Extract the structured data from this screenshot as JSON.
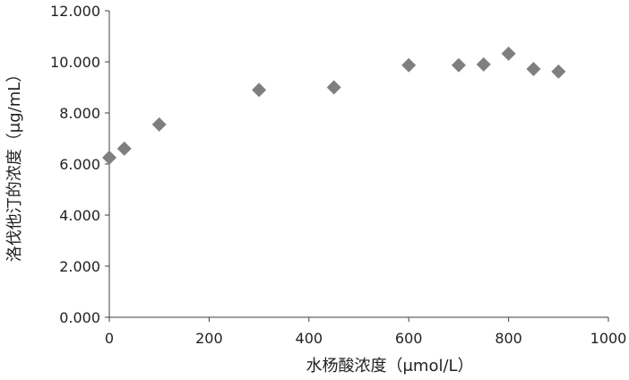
{
  "chart_data": {
    "type": "scatter",
    "title": "",
    "xlabel": "水杨酸浓度（μmol/L）",
    "ylabel": "洛伐他汀的浓度（μg/mL）",
    "xlim": [
      0,
      1000
    ],
    "ylim": [
      0,
      12
    ],
    "x_ticks": [
      0,
      200,
      400,
      600,
      800,
      1000
    ],
    "x_tick_labels": [
      "0",
      "200",
      "400",
      "600",
      "800",
      "1000"
    ],
    "y_ticks": [
      0,
      2,
      4,
      6,
      8,
      10,
      12
    ],
    "y_tick_labels": [
      "0.000",
      "2.000",
      "4.000",
      "6.000",
      "8.000",
      "10.000",
      "12.000"
    ],
    "grid": false,
    "legend": "none",
    "marker": "diamond",
    "color": "#7f7f7f",
    "series": [
      {
        "x": [
          0,
          30,
          100,
          300,
          450,
          600,
          700,
          750,
          800,
          850,
          900
        ],
        "y": [
          6.25,
          6.6,
          7.55,
          8.9,
          9.0,
          9.87,
          9.87,
          9.9,
          10.32,
          9.72,
          9.62
        ]
      }
    ]
  }
}
